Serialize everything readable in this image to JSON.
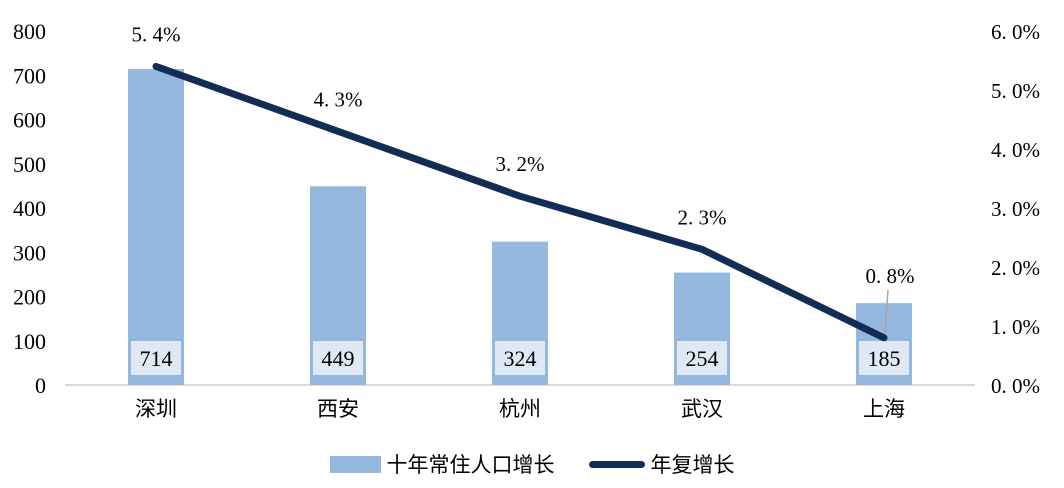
{
  "chart_data": {
    "type": "combo-bar-line",
    "title": "",
    "categories": [
      "深圳",
      "西安",
      "杭州",
      "武汉",
      "上海"
    ],
    "series": [
      {
        "name": "十年常住人口增长",
        "type": "bar",
        "axis": "left",
        "color": "#95B8DF",
        "label_box_color": "#DEE9F5",
        "values": [
          714,
          449,
          324,
          254,
          185
        ],
        "value_labels": [
          "714",
          "449",
          "324",
          "254",
          "185"
        ]
      },
      {
        "name": "年复增长",
        "type": "line",
        "axis": "right",
        "color": "#132C56",
        "values": [
          5.4,
          4.3,
          3.2,
          2.3,
          0.8
        ],
        "value_labels": [
          "5. 4%",
          "4. 3%",
          "3. 2%",
          "2. 3%",
          "0. 8%"
        ]
      }
    ],
    "left_axis": {
      "min": 0,
      "max": 800,
      "tick_values": [
        0,
        100,
        200,
        300,
        400,
        500,
        600,
        700,
        800
      ],
      "tick_labels": [
        "0",
        "100",
        "200",
        "300",
        "400",
        "500",
        "600",
        "700",
        "800"
      ]
    },
    "right_axis": {
      "min": 0,
      "max": 6,
      "tick_values": [
        0,
        1,
        2,
        3,
        4,
        5,
        6
      ],
      "tick_labels": [
        "0. 0%",
        "1. 0%",
        "2. 0%",
        "3. 0%",
        "4. 0%",
        "5. 0%",
        "6. 0%"
      ]
    },
    "grid": false,
    "legend_position": "bottom",
    "axis_line_color": "#D9D9D9",
    "leader_line_color": "#A6A6A6",
    "text_color": "#000000",
    "background_color": "#FFFFFF"
  }
}
